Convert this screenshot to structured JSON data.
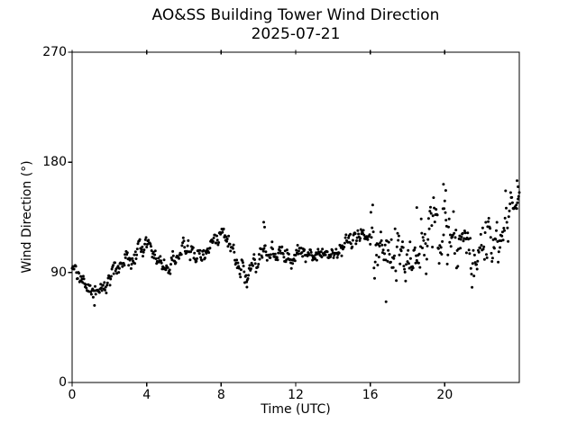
{
  "figure": {
    "title_line1": "AO&SS Building Tower Wind Direction",
    "title_line2": "2025-07-21",
    "background_color": "#ffffff",
    "axis_color": "#000000"
  },
  "chart_data": {
    "type": "scatter",
    "title": "AO&SS Building Tower Wind Direction",
    "subtitle": "2025-07-21",
    "xlabel": "Time (UTC)",
    "ylabel": "Wind Direction (°)",
    "xlim": [
      0,
      24
    ],
    "ylim": [
      0,
      270
    ],
    "xticks": [
      0,
      4,
      8,
      12,
      16,
      20
    ],
    "yticks": [
      0,
      90,
      180,
      270
    ],
    "grid": false,
    "legend": null,
    "marker": {
      "shape": "dot",
      "color": "#000000",
      "radius_px": 1.5
    },
    "sampling_interval_hours": 0.033333,
    "trend": {
      "t_start": 0,
      "t_step": 0.25,
      "values": [
        97,
        92,
        86,
        80,
        74,
        72,
        74,
        78,
        84,
        90,
        95,
        99,
        101,
        103,
        106,
        110,
        112,
        108,
        101,
        96,
        94,
        98,
        103,
        107,
        109,
        107,
        104,
        103,
        106,
        110,
        115,
        120,
        122,
        118,
        110,
        100,
        93,
        90,
        92,
        97,
        102,
        112,
        108,
        104,
        103,
        104,
        103,
        102,
        104,
        105,
        103,
        102,
        104,
        103,
        101,
        103,
        107,
        110,
        112,
        114,
        115,
        117,
        118,
        119,
        118,
        112,
        108,
        105,
        108,
        110,
        103,
        100,
        102,
        105,
        108,
        112,
        115,
        118,
        122,
        126,
        128,
        124,
        118,
        112,
        108,
        105,
        107,
        110,
        113,
        116,
        118,
        121,
        124,
        128,
        134,
        143,
        150
      ]
    },
    "noise_segments": [
      {
        "from": 0.0,
        "to": 16.0,
        "sd": 4.2
      },
      {
        "from": 16.0,
        "to": 23.55,
        "sd": 13.0
      },
      {
        "from": 23.55,
        "to": 24.01,
        "sd": 4.5
      }
    ],
    "autocorrelation": 0.55,
    "outliers": [
      [
        1.2,
        63
      ],
      [
        10.28,
        131
      ],
      [
        10.33,
        127
      ],
      [
        16.85,
        66
      ],
      [
        18.5,
        143
      ],
      [
        19.93,
        162
      ],
      [
        20.05,
        157
      ],
      [
        23.88,
        165
      ],
      [
        23.93,
        160
      ],
      [
        9.38,
        78
      ]
    ],
    "seed": 20250721
  }
}
